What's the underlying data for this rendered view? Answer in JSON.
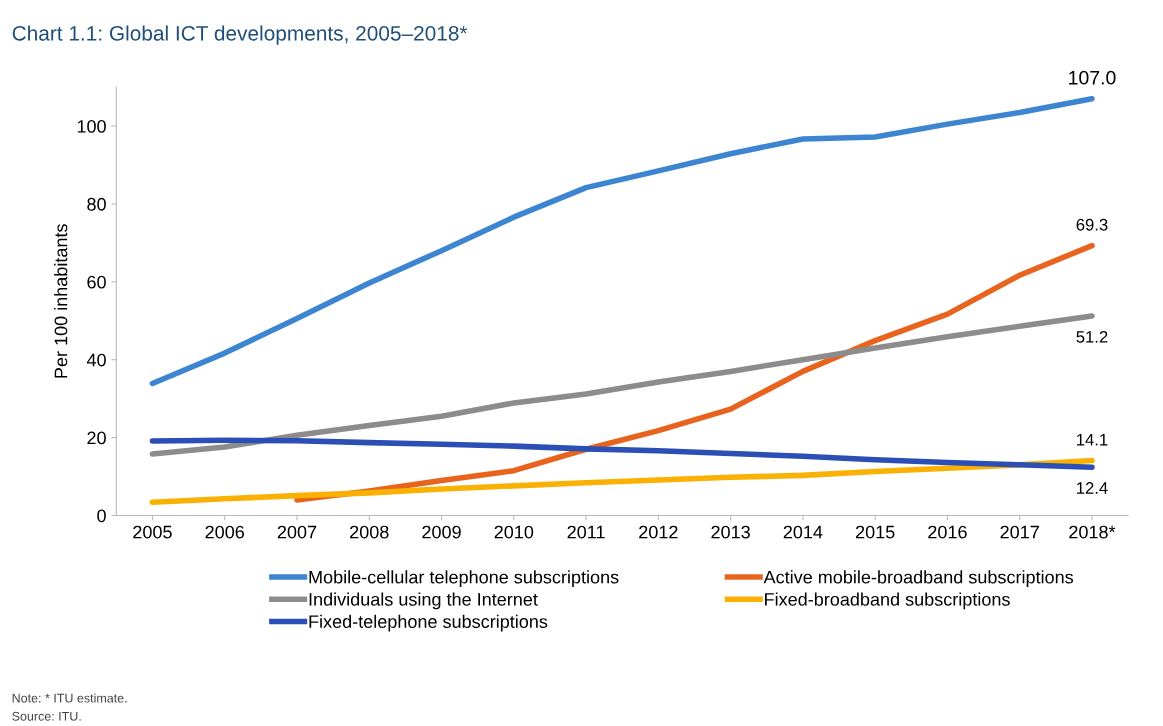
{
  "chart_data": {
    "type": "line",
    "title": "Chart 1.1: Global ICT developments, 2005–2018*",
    "ylabel": "Per 100 inhabitants",
    "categories": [
      "2005",
      "2006",
      "2007",
      "2008",
      "2009",
      "2010",
      "2011",
      "2012",
      "2013",
      "2014",
      "2015",
      "2016",
      "2017",
      "2018*"
    ],
    "series": [
      {
        "name": "Mobile-cellular telephone subscriptions",
        "color": "#3d85d1",
        "values": [
          33.9,
          41.7,
          50.6,
          59.7,
          68.0,
          76.6,
          84.2,
          88.5,
          92.9,
          96.7,
          97.2,
          100.5,
          103.5,
          107.0
        ]
      },
      {
        "name": "Active mobile-broadband subscriptions",
        "color": "#e8641e",
        "values": [
          null,
          null,
          4.0,
          6.3,
          9.0,
          11.5,
          17.0,
          21.8,
          27.3,
          37.0,
          44.9,
          51.7,
          61.7,
          69.3
        ]
      },
      {
        "name": "Individuals using the Internet",
        "color": "#8c8c8c",
        "values": [
          15.8,
          17.6,
          20.6,
          23.1,
          25.5,
          28.9,
          31.2,
          34.3,
          37.0,
          40.0,
          43.0,
          45.9,
          48.6,
          51.2
        ]
      },
      {
        "name": "Fixed-broadband subscriptions",
        "color": "#fbb103",
        "values": [
          3.4,
          4.3,
          5.1,
          5.8,
          6.8,
          7.6,
          8.4,
          9.1,
          9.8,
          10.3,
          11.3,
          12.1,
          13.0,
          14.1
        ]
      },
      {
        "name": "Fixed-telephone subscriptions",
        "color": "#2c4fb5",
        "values": [
          19.1,
          19.3,
          19.2,
          18.7,
          18.3,
          17.8,
          17.1,
          16.6,
          15.9,
          15.2,
          14.3,
          13.6,
          13.0,
          12.4
        ]
      }
    ],
    "ylim": [
      0,
      110
    ],
    "yticks": [
      0,
      20,
      40,
      60,
      80,
      100
    ],
    "grid": false,
    "legend": "bottom",
    "marker": "none",
    "line_style": "solid",
    "annotations": [
      {
        "text": "107.0",
        "x": "2018*",
        "y": 107.0
      },
      {
        "text": "69.3",
        "x": "2018*",
        "y": 69.3
      },
      {
        "text": "51.2",
        "x": "2018*",
        "y": 51.2
      },
      {
        "text": "14.1",
        "x": "2018*",
        "y": 14.1
      },
      {
        "text": "12.4",
        "x": "2018*",
        "y": 12.4
      },
      "Note: * ITU estimate.",
      "Source: ITU."
    ]
  }
}
